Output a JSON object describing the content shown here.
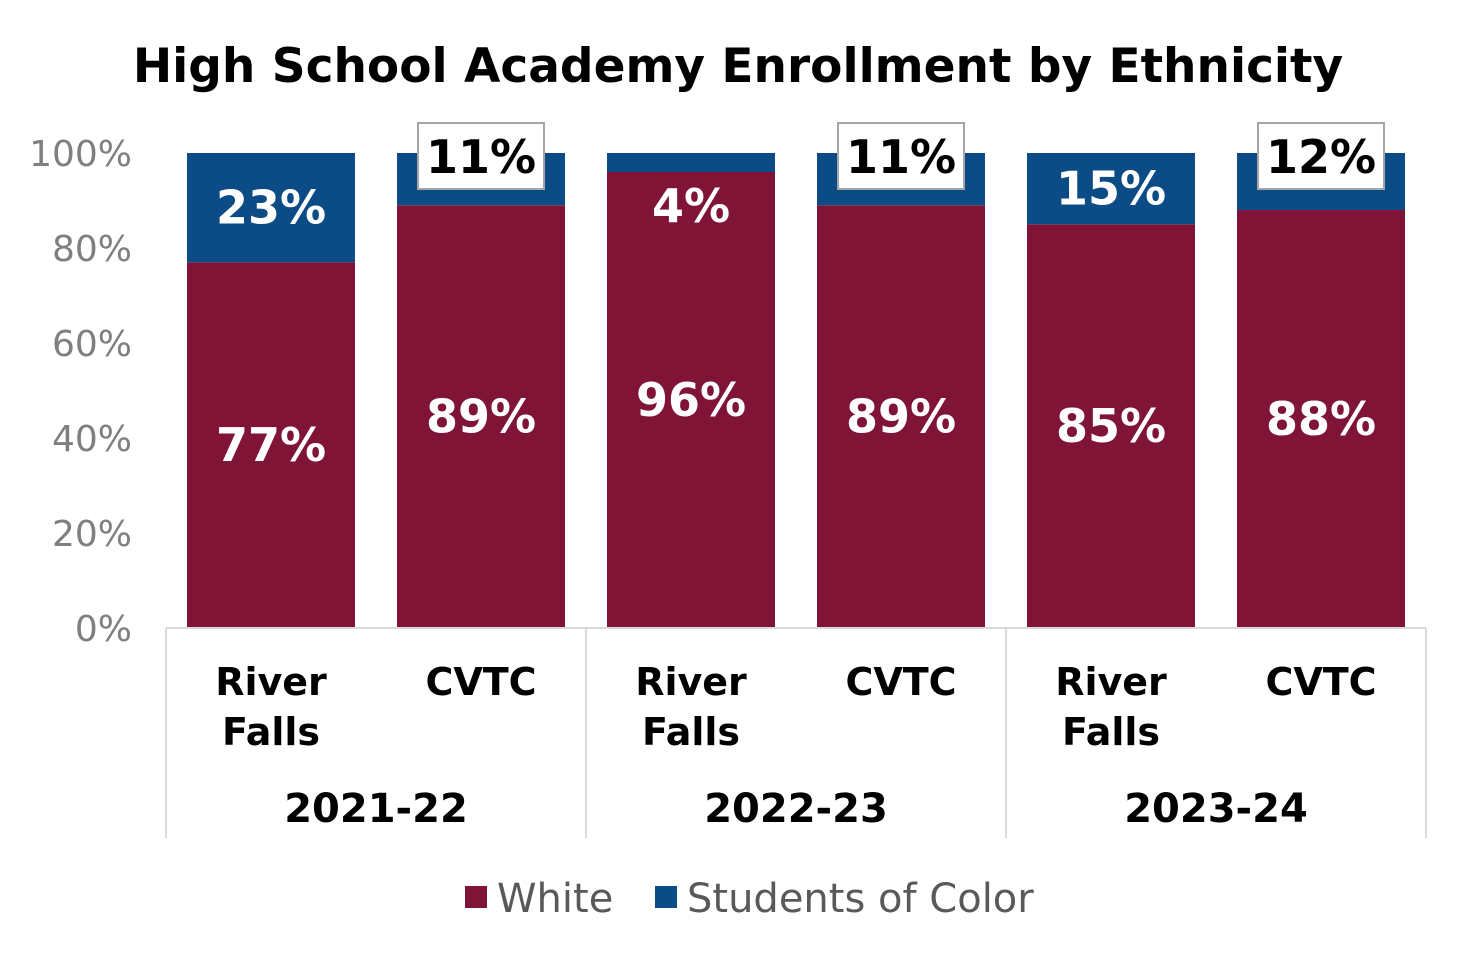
{
  "chart_data": {
    "type": "bar",
    "stacked": true,
    "title": "High School Academy Enrollment by Ethnicity",
    "xlabel": "",
    "ylabel": "",
    "ylim": [
      0,
      100
    ],
    "y_ticks": [
      "0%",
      "20%",
      "40%",
      "60%",
      "80%",
      "100%"
    ],
    "y_tick_values": [
      0,
      20,
      40,
      60,
      80,
      100
    ],
    "grid": false,
    "legend_position": "bottom",
    "groups": [
      {
        "label": "2021-22",
        "categories": [
          {
            "lines": [
              "River",
              "Falls"
            ]
          },
          {
            "lines": [
              "CVTC"
            ]
          }
        ]
      },
      {
        "label": "2022-23",
        "categories": [
          {
            "lines": [
              "River",
              "Falls"
            ]
          },
          {
            "lines": [
              "CVTC"
            ]
          }
        ]
      },
      {
        "label": "2023-24",
        "categories": [
          {
            "lines": [
              "River",
              "Falls"
            ]
          },
          {
            "lines": [
              "CVTC"
            ]
          }
        ]
      }
    ],
    "series": [
      {
        "name": "White",
        "color": "#7f1436",
        "values": [
          77,
          89,
          96,
          89,
          85,
          88
        ],
        "labels": [
          "77%",
          "89%",
          "96%",
          "89%",
          "85%",
          "88%"
        ]
      },
      {
        "name": "Students of Color",
        "color": "#0b4c86",
        "values": [
          23,
          11,
          4,
          11,
          15,
          12
        ],
        "labels": [
          "23%",
          "11%",
          "4%",
          "11%",
          "15%",
          "12%"
        ]
      }
    ],
    "boxed_label_indices": [
      1,
      3,
      5
    ]
  }
}
